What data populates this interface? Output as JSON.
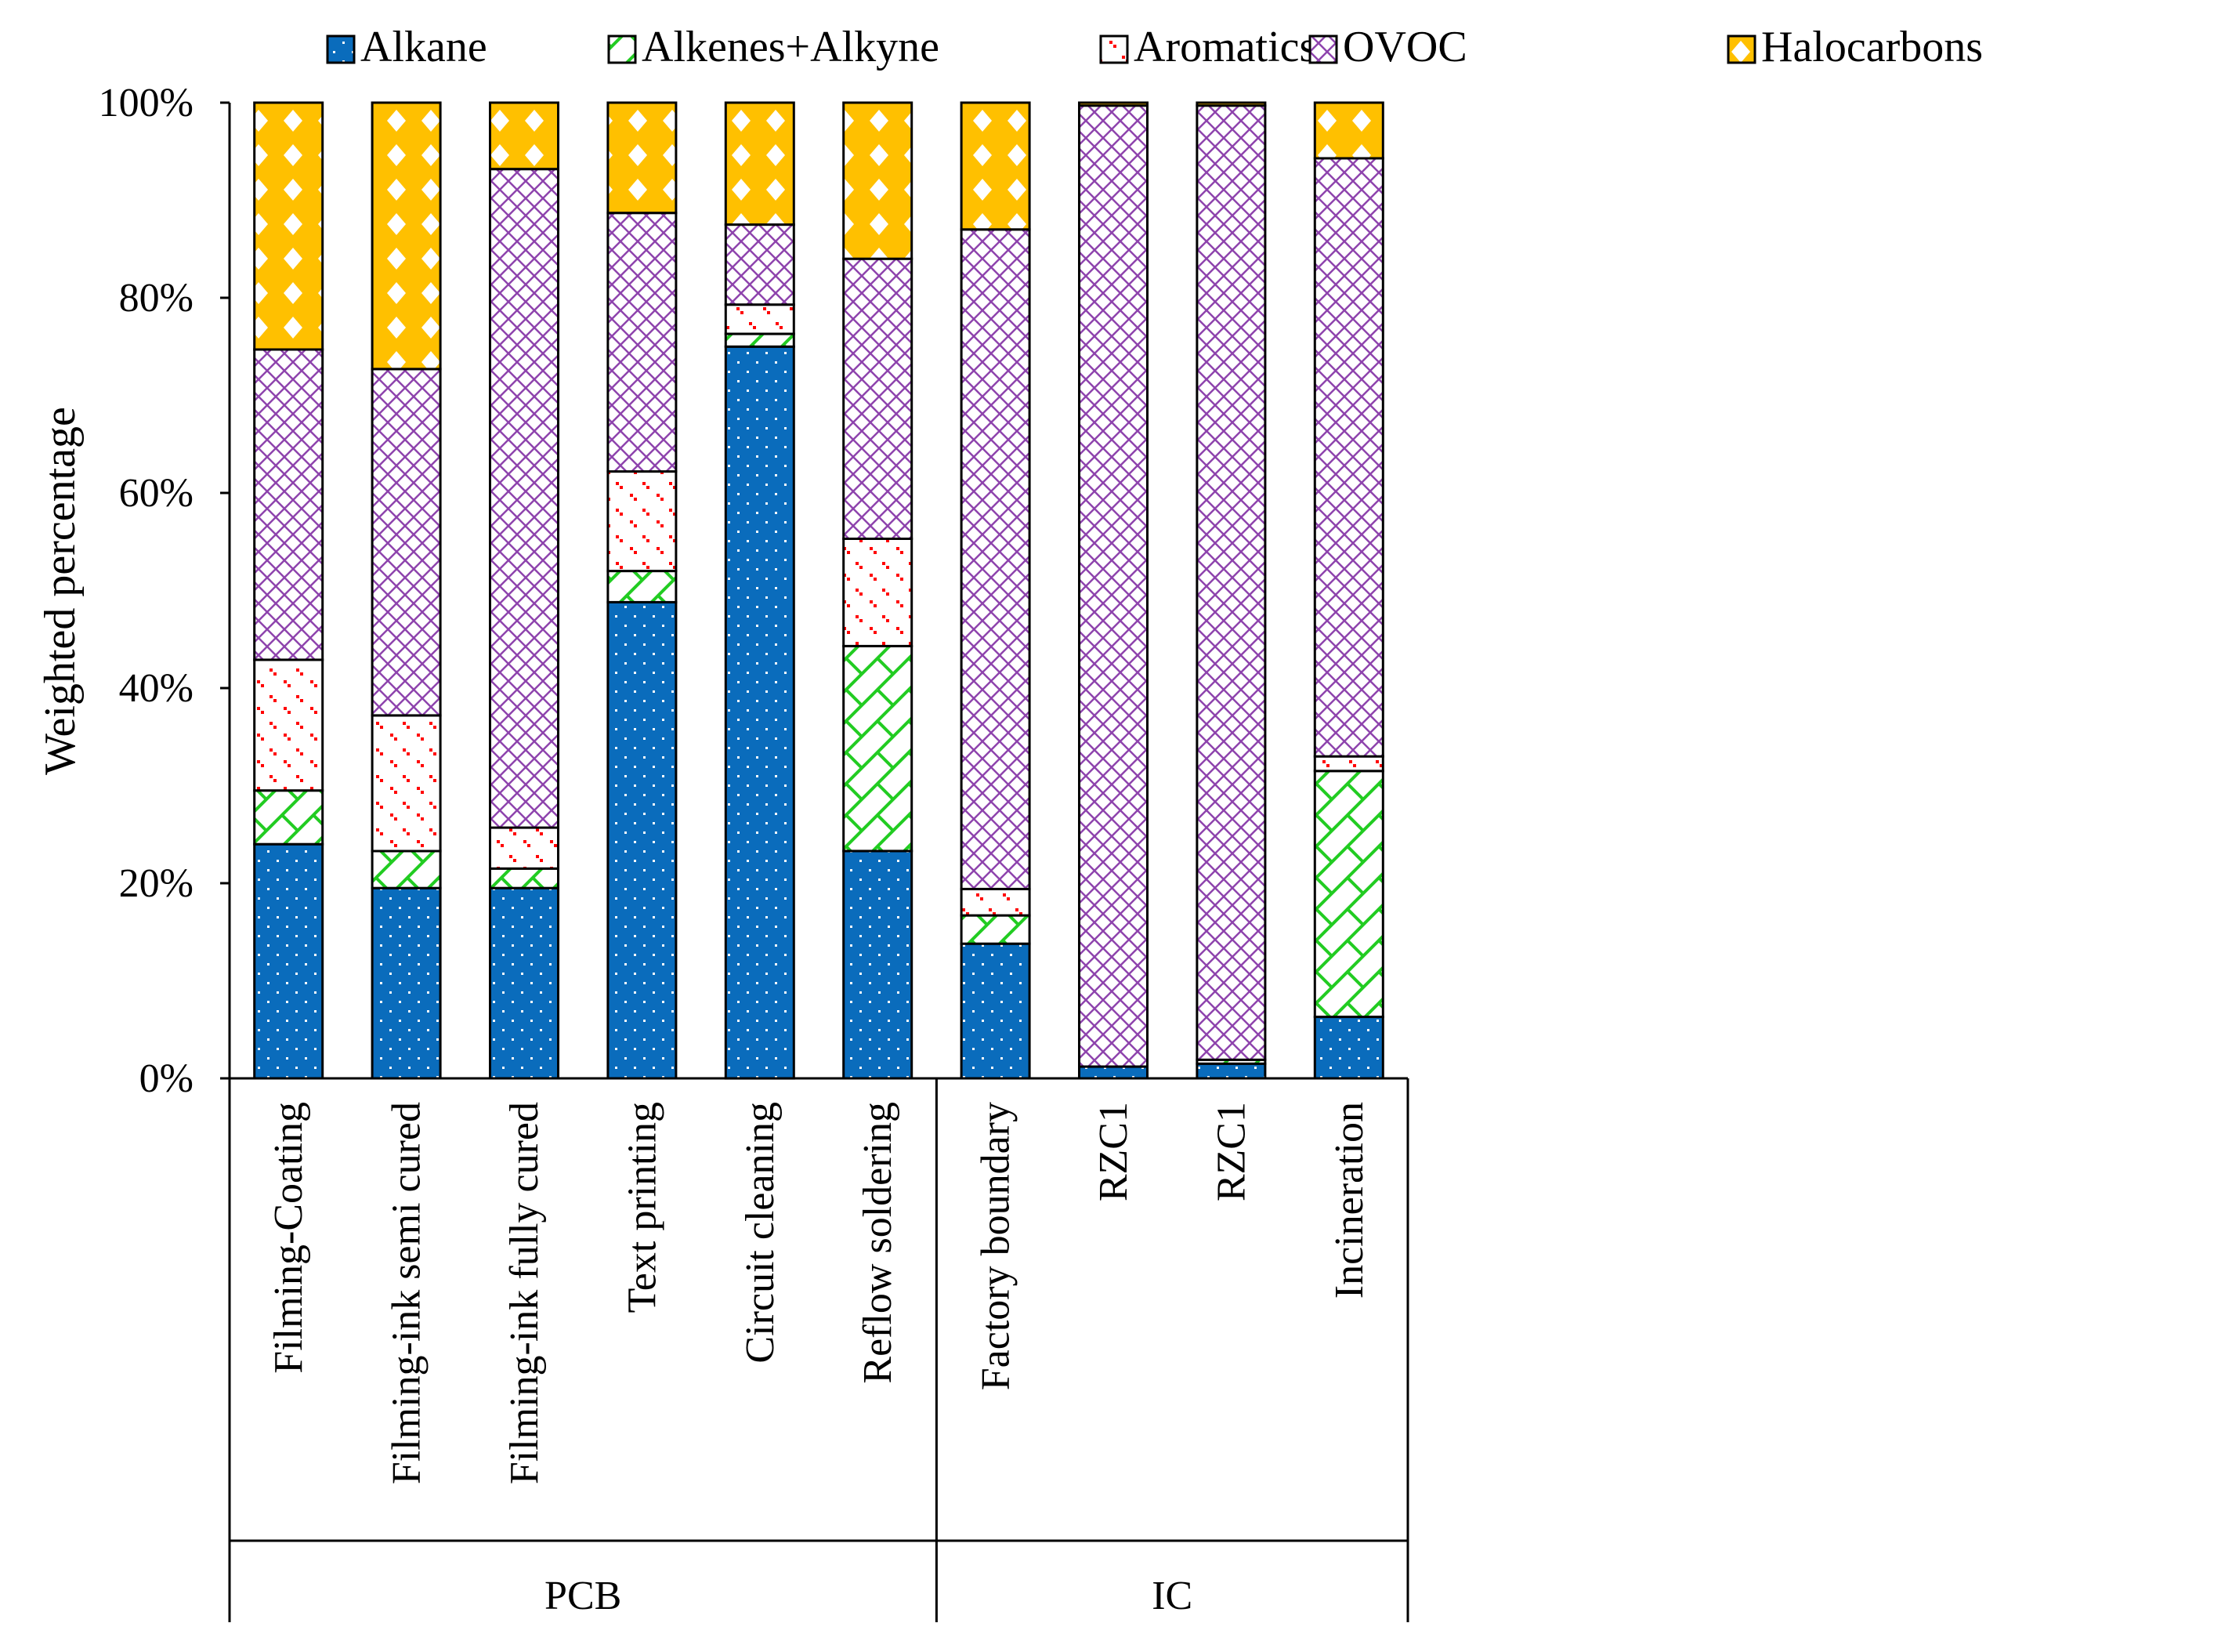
{
  "chart_data": {
    "type": "bar",
    "stacked": true,
    "normalized": true,
    "title": "",
    "ylabel": "Weighted percentage",
    "xlabel": "",
    "ylim": [
      0,
      100
    ],
    "ytick_labels": [
      "0%",
      "20%",
      "40%",
      "60%",
      "80%",
      "100%"
    ],
    "yticks": [
      0,
      20,
      40,
      60,
      80,
      100
    ],
    "categories": [
      "Filming-Coating",
      "Filming-ink semi cured",
      "Filming-ink fully cured",
      "Text printing",
      "Circuit cleaning",
      "Reflow soldering",
      "Factory boundary",
      "RZC1",
      "RZC1",
      "Incineration"
    ],
    "groups": [
      {
        "label": "PCB",
        "start": 0,
        "end": 5
      },
      {
        "label": "IC",
        "start": 6,
        "end": 9
      }
    ],
    "legend_position": "top",
    "series": [
      {
        "name": "Alkane",
        "color": "#0a6cbc",
        "pattern": "dots",
        "values": [
          24,
          19.5,
          19.5,
          48.8,
          75,
          23.3,
          13.8,
          1.2,
          1.5,
          6.3
        ]
      },
      {
        "name": "Alkenes+Alkyne",
        "color": "#22cc22",
        "pattern": "hatch",
        "values": [
          5.5,
          3.8,
          2,
          3.2,
          1.3,
          21,
          2.9,
          0,
          0.4,
          25.2
        ]
      },
      {
        "name": "Aromatics",
        "color": "#ff0000",
        "pattern": "speckle",
        "values": [
          13.4,
          13.9,
          4.2,
          10.2,
          3,
          11,
          2.7,
          0,
          0,
          1.5
        ]
      },
      {
        "name": "OVOC",
        "color": "#8e44ad",
        "pattern": "crosshatch",
        "values": [
          31.8,
          35.5,
          67.5,
          26.5,
          8.2,
          28.7,
          67.6,
          98.5,
          97.8,
          61.3
        ]
      },
      {
        "name": "Halocarbons",
        "color": "#ffc000",
        "pattern": "diamonds",
        "values": [
          25.3,
          27.3,
          6.8,
          11.3,
          12.5,
          16,
          13,
          0.3,
          0.3,
          5.7
        ]
      }
    ]
  }
}
